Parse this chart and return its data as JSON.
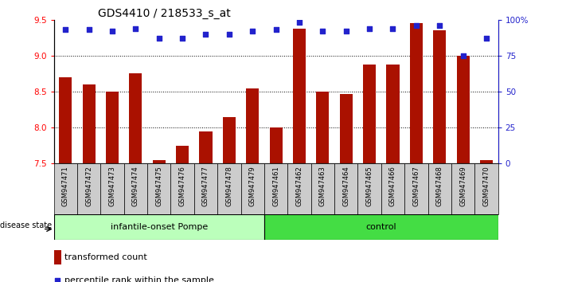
{
  "title": "GDS4410 / 218533_s_at",
  "samples": [
    "GSM947471",
    "GSM947472",
    "GSM947473",
    "GSM947474",
    "GSM947475",
    "GSM947476",
    "GSM947477",
    "GSM947478",
    "GSM947479",
    "GSM947461",
    "GSM947462",
    "GSM947463",
    "GSM947464",
    "GSM947465",
    "GSM947466",
    "GSM947467",
    "GSM947468",
    "GSM947469",
    "GSM947470"
  ],
  "bar_values": [
    8.7,
    8.6,
    8.5,
    8.75,
    7.55,
    7.75,
    7.95,
    8.15,
    8.55,
    8.0,
    9.38,
    8.5,
    8.47,
    8.88,
    8.88,
    9.45,
    9.35,
    9.0,
    7.55
  ],
  "dot_pct": [
    93,
    93,
    92,
    94,
    87,
    87,
    90,
    90,
    92,
    93,
    98,
    92,
    92,
    94,
    94,
    96,
    96,
    75,
    87
  ],
  "group1_label": "infantile-onset Pompe",
  "group2_label": "control",
  "group1_count": 9,
  "group2_count": 10,
  "ylim_left": [
    7.5,
    9.5
  ],
  "ylim_right": [
    0,
    100
  ],
  "yticks_left": [
    7.5,
    8.0,
    8.5,
    9.0,
    9.5
  ],
  "yticks_right": [
    0,
    25,
    50,
    75,
    100
  ],
  "ytick_labels_right": [
    "0",
    "25",
    "50",
    "75",
    "100%"
  ],
  "grid_lines": [
    8.0,
    8.5,
    9.0
  ],
  "bar_color": "#aa1100",
  "dot_color": "#2222cc",
  "group1_color": "#bbffbb",
  "group2_color": "#44dd44",
  "legend_bar_label": "transformed count",
  "legend_dot_label": "percentile rank within the sample",
  "disease_state_label": "disease state",
  "title_fontsize": 10,
  "tick_fontsize": 7.5,
  "sample_fontsize": 6,
  "group_fontsize": 8
}
